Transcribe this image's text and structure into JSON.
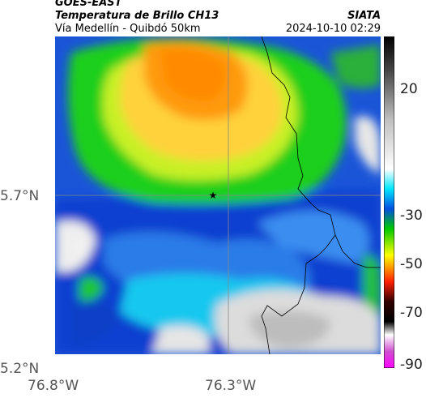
{
  "header": {
    "source": "GOES-EAST",
    "product": "Temperatura de Brillo CH13",
    "region": "Vía Medellín - Quibdó 50km",
    "org": "SIATA",
    "datetime": "2024-10-10 02:29"
  },
  "axes": {
    "y_labels": [
      "5.7°N",
      "5.2°N"
    ],
    "x_labels": [
      "76.8°W",
      "76.3°W"
    ]
  },
  "colorbar": {
    "ticks": [
      "20",
      "-30",
      "-50",
      "-70",
      "-90"
    ],
    "colors": [
      "#000000",
      "#808080",
      "#ffffff",
      "#00ffff",
      "#0000ff",
      "#00ff00",
      "#ffff00",
      "#ff0000",
      "#000000",
      "#ffffff",
      "#ff00ff"
    ]
  },
  "map": {
    "marker": "star-icon"
  }
}
